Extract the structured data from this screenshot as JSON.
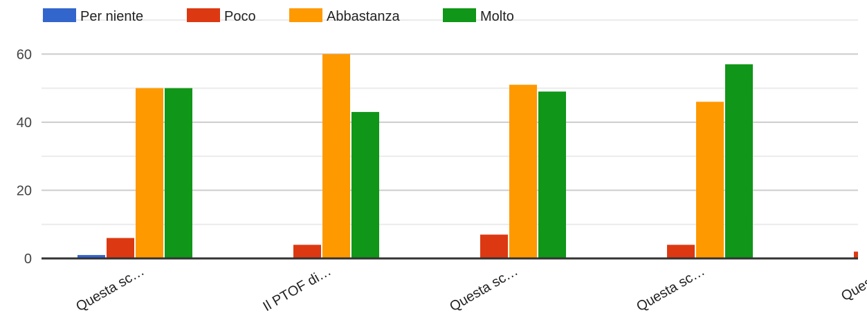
{
  "chart_data": {
    "type": "bar",
    "categories": [
      "Questa sc…",
      "Il PTOF di…",
      "Questa sc…",
      "Questa sc…",
      "Questa s"
    ],
    "series": [
      {
        "name": "Per niente",
        "color": "#3366cc",
        "values": [
          1,
          0,
          0,
          0,
          0
        ]
      },
      {
        "name": "Poco",
        "color": "#dc3912",
        "values": [
          6,
          4,
          7,
          4,
          2
        ]
      },
      {
        "name": "Abbastanza",
        "color": "#ff9900",
        "values": [
          50,
          60,
          51,
          46,
          null
        ]
      },
      {
        "name": "Molto",
        "color": "#109618",
        "values": [
          50,
          43,
          49,
          57,
          null
        ]
      }
    ],
    "yticks": [
      0,
      20,
      40,
      60
    ],
    "ylim": [
      0,
      70
    ],
    "grid": true,
    "legend_position": "top-left"
  }
}
